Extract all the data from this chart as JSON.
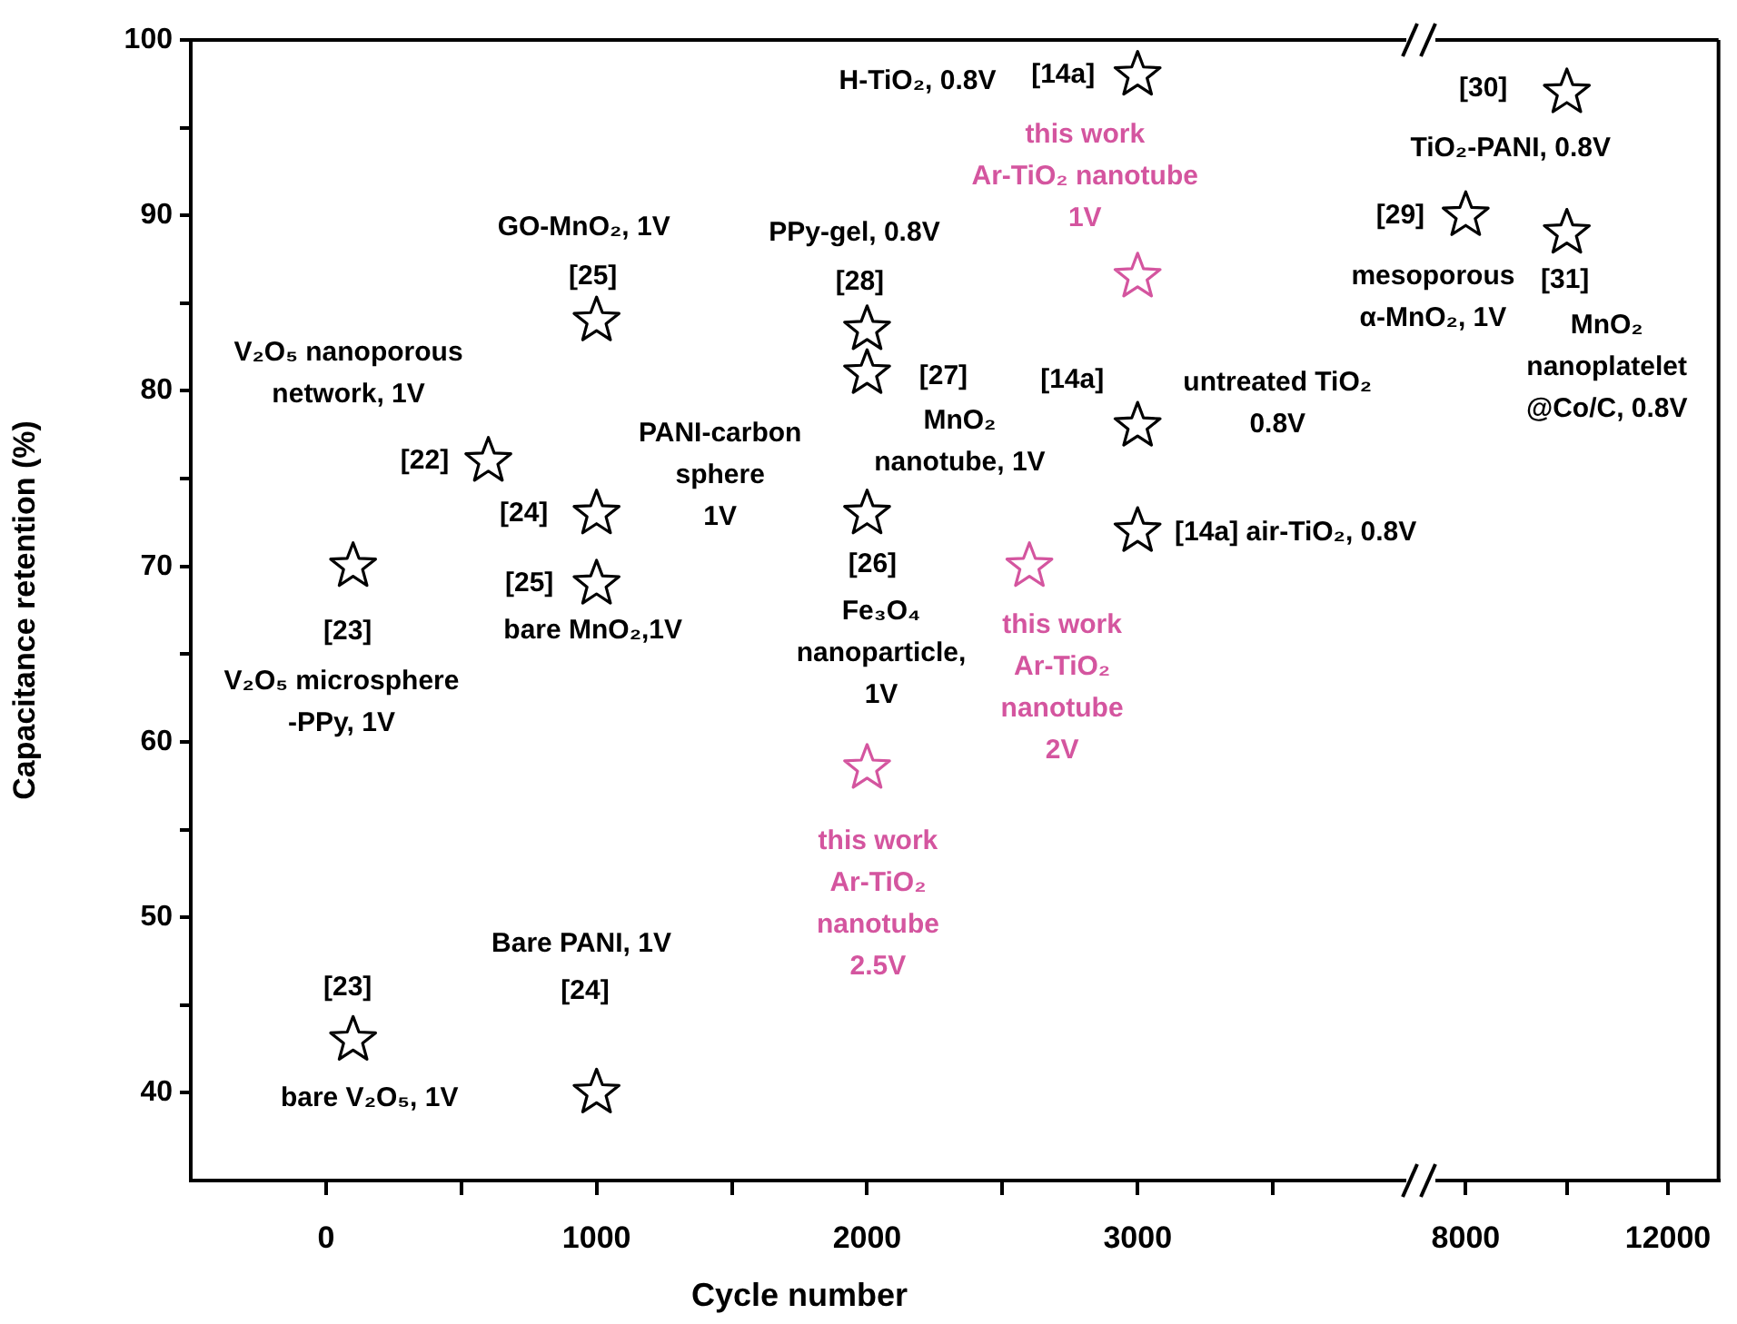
{
  "chart_data": [
    {
      "type": "scatter",
      "xlabel": "Cycle number",
      "ylabel": "Capacitance retention (%)",
      "xlim": [
        -500,
        4000
      ],
      "ylim": [
        35,
        100
      ],
      "xticks": [
        0,
        {
          "value": 500,
          "label": null
        },
        1000,
        {
          "value": 1500,
          "label": null
        },
        2000,
        {
          "value": 2500,
          "label": null
        },
        3000,
        {
          "value": 3500,
          "label": null
        }
      ],
      "yticks": [
        40,
        {
          "value": 45,
          "label": null
        },
        50,
        {
          "value": 55,
          "label": null
        },
        60,
        {
          "value": 65,
          "label": null
        },
        70,
        {
          "value": 75,
          "label": null
        },
        80,
        {
          "value": 85,
          "label": null
        },
        90,
        {
          "value": 95,
          "label": null
        },
        100
      ],
      "grid": false,
      "legend": false,
      "marker": "star",
      "series": [
        {
          "color": "#000000",
          "x": [
            100,
            1000,
            100,
            600,
            1000,
            1000,
            1000,
            2000,
            2000,
            2000,
            3000,
            3000,
            3000
          ],
          "values": [
            43,
            40,
            70,
            76,
            73,
            69,
            84,
            83.5,
            81,
            73,
            98,
            78,
            72
          ]
        },
        {
          "color": "#d4559f",
          "x": [
            2000,
            2600,
            3000
          ],
          "values": [
            58.5,
            70,
            86.5
          ]
        }
      ],
      "annotations": [
        {
          "text": "[23]",
          "x": 100,
          "y": 43
        },
        {
          "text": "bare V₂O₅, 1V",
          "x": 100,
          "y": 43
        },
        "Bare PANI, 1V",
        "[24]",
        "V₂O₅ microsphere\n-PPy, 1V",
        {
          "text": "[23]",
          "x": 100,
          "y": 70
        },
        {
          "text": "V₂O₅ nanoporous\nnetwork, 1V",
          "x": 600,
          "y": 76
        },
        {
          "text": "[22]",
          "x": 600,
          "y": 76
        },
        {
          "text": "PANI-carbon\nsphere\n1V",
          "x": 1000,
          "y": 73
        },
        {
          "text": "[24]",
          "x": 1000,
          "y": 73
        },
        {
          "text": "[25]",
          "x": 1000,
          "y": 69
        },
        {
          "text": "bare MnO₂,1V",
          "x": 1000,
          "y": 69
        },
        {
          "text": "GO-MnO₂, 1V",
          "x": 1000,
          "y": 84
        },
        {
          "text": "[25]",
          "x": 1000,
          "y": 84
        },
        {
          "text": "PPy-gel, 0.8V",
          "x": 2000,
          "y": 83.5
        },
        {
          "text": "[28]",
          "x": 2000,
          "y": 83.5
        },
        {
          "text": "[27]",
          "x": 2000,
          "y": 81
        },
        {
          "text": "MnO₂\nnanotube, 1V",
          "x": 2000,
          "y": 81
        },
        {
          "text": "[26]",
          "x": 2000,
          "y": 73
        },
        "Fe₃O₄\nnanoparticle,\n1V",
        {
          "text": "this work\nAr-TiO₂\nnanotube\n2.5V",
          "x": 2000,
          "y": 58.5
        },
        {
          "text": "this work\nAr-TiO₂\nnanotube\n2V",
          "x": 2600,
          "y": 70
        },
        {
          "text": "this work\nAr-TiO₂ nanotube\n1V",
          "x": 3000,
          "y": 86.5
        },
        "H-TiO₂, 0.8V",
        {
          "text": "[14a]",
          "x": 3000,
          "y": 98
        },
        {
          "text": "[14a]",
          "x": 3000,
          "y": 78
        },
        {
          "text": "untreated TiO₂\n0.8V",
          "x": 3000,
          "y": 78
        },
        {
          "text": "[14a] air-TiO₂, 0.8V",
          "x": 3000,
          "y": 72
        }
      ]
    },
    {
      "type": "scatter",
      "xlim": [
        7400,
        13000
      ],
      "ylim": [
        35,
        100
      ],
      "xticks": [
        8000,
        {
          "value": 10000,
          "label": null
        },
        12000
      ],
      "tick_labels": "x",
      "grid": false,
      "legend": false,
      "marker": "star",
      "series": [
        {
          "color": "#000000",
          "x": [
            8000,
            10000,
            10000
          ],
          "values": [
            90,
            97,
            89
          ]
        }
      ],
      "annotations": [
        {
          "text": "[29]",
          "x": 8000,
          "y": 90
        },
        {
          "text": "mesoporous\nα-MnO₂, 1V",
          "x": 8000,
          "y": 90
        },
        {
          "text": "[30]",
          "x": 10000,
          "y": 97
        },
        {
          "text": "TiO₂-PANI, 0.8V",
          "x": 10000,
          "y": 97
        },
        {
          "text": "[31]",
          "x": 10000,
          "y": 89
        },
        {
          "text": "MnO₂\nnanoplatelet\n@Co/C, 0.8V",
          "x": 10000,
          "y": 89
        }
      ]
    }
  ]
}
